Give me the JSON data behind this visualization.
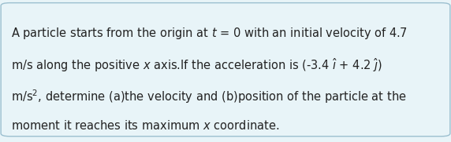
{
  "background_color": "#e8f4f8",
  "box_facecolor": "#e8f4f8",
  "border_color": "#9bbfcf",
  "text_color": "#222222",
  "lines": [
    "A particle starts from the origin at $t$ = 0 with an initial velocity of 4.7",
    "m/s along the positive $x$ axis.If the acceleration is (-3.4 $\\hat{\\imath}$ + 4.2 $\\hat{\\jmath}$)",
    "m/s$^2$, determine (a)the velocity and (b)position of the particle at the",
    "moment it reaches its maximum $x$ coordinate."
  ],
  "font_size": 10.5,
  "figsize": [
    5.72,
    1.81
  ],
  "dpi": 100
}
